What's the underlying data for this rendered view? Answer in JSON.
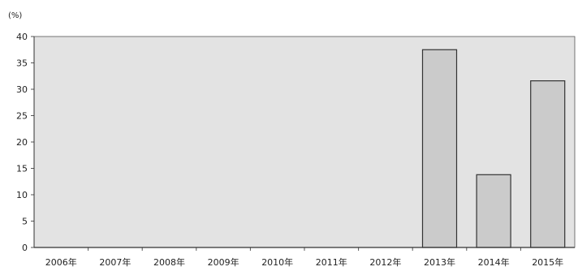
{
  "chart_data": {
    "type": "bar",
    "unit": "(%)",
    "categories": [
      "2006年",
      "2007年",
      "2008年",
      "2009年",
      "2010年",
      "2011年",
      "2012年",
      "2013年",
      "2014年",
      "2015年"
    ],
    "values": [
      0,
      0,
      0,
      0,
      0,
      0,
      0,
      37.5,
      13.8,
      31.6
    ],
    "ylim": [
      0,
      40
    ],
    "yticks": [
      0,
      5,
      10,
      15,
      20,
      25,
      30,
      35,
      40
    ],
    "grid": false,
    "colors": {
      "plot_background": "#e3e3e3",
      "bar_fill": "#cbcbcb",
      "bar_stroke": "#333333",
      "axis": "#555555"
    }
  }
}
